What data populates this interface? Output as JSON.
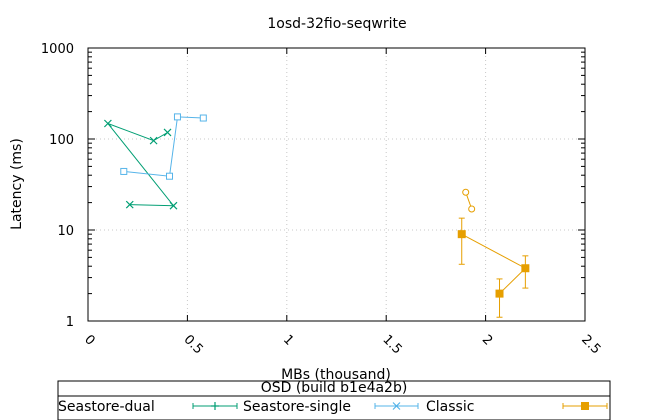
{
  "chart_data": {
    "type": "line",
    "title": "1osd-32fio-seqwrite",
    "xlabel": "MBs (thousand)",
    "ylabel": "Latency (ms)",
    "xlim": [
      0,
      2.5
    ],
    "ylim": [
      1,
      1000
    ],
    "yscale": "log",
    "grid": true,
    "legend_position": "bottom",
    "legend_title": "OSD (build b1e4a2b)",
    "x_ticks": [
      "0",
      "0.5",
      "1",
      "1.5",
      "2",
      "2.5"
    ],
    "y_ticks": [
      "1",
      "10",
      "100",
      "1000"
    ],
    "series": [
      {
        "name": "Seastore-dual",
        "color": "#009e73",
        "marker": "x",
        "points": [
          [
            0.21,
            19
          ],
          [
            0.43,
            18.5
          ],
          [
            0.1,
            148
          ],
          [
            0.33,
            96
          ],
          [
            0.4,
            118
          ]
        ]
      },
      {
        "name": "Seastore-single",
        "color": "#56b4e9",
        "marker": "square-open",
        "points": [
          [
            0.18,
            44
          ],
          [
            0.41,
            39
          ],
          [
            0.45,
            175
          ],
          [
            0.58,
            170
          ]
        ]
      },
      {
        "name": "Classic",
        "color": "#e69f00",
        "marker": "square-filled",
        "points": [
          [
            1.88,
            9.0
          ],
          [
            2.2,
            3.8
          ],
          [
            2.07,
            2.0
          ]
        ],
        "errors": [
          [
            4.2,
            13.5
          ],
          [
            2.3,
            5.2
          ],
          [
            1.1,
            2.9
          ]
        ]
      },
      {
        "name": "",
        "color": "#e69f00",
        "marker": "circle-open",
        "points": [
          [
            1.9,
            26
          ],
          [
            1.93,
            17
          ]
        ]
      }
    ]
  }
}
